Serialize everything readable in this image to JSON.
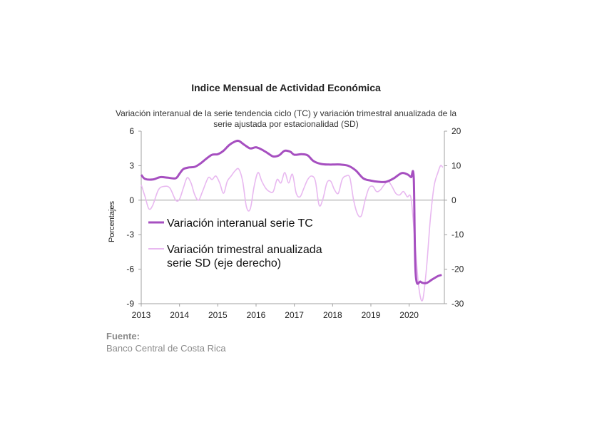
{
  "chart_data": {
    "type": "line",
    "title": "Indice Mensual de  Actividad Económica",
    "subtitle_line1": "Variación interanual de la serie tendencia ciclo (TC) y variación trimestral anualizada de la",
    "subtitle_line2": "serie ajustada por estacionalidad (SD)",
    "ylabel": "Porcentajes",
    "ylim_left": [
      -9,
      6
    ],
    "ylim_right": [
      -30,
      20
    ],
    "yticks_left": [
      "6",
      "3",
      "0",
      "-3",
      "-6",
      "-9"
    ],
    "yticks_right": [
      "20",
      "10",
      "0",
      "-10",
      "-20",
      "-30"
    ],
    "xticks": [
      "2013",
      "2014",
      "2015",
      "2016",
      "2017",
      "2018",
      "2019",
      "2020"
    ],
    "x_range": [
      2013.0,
      2020.92
    ],
    "grid": false,
    "legend_position": "inside-left",
    "series": [
      {
        "name": "Variación interanual serie TC",
        "axis": "left",
        "color": "#a64fc0",
        "points": [
          [
            2013.0,
            2.2
          ],
          [
            2013.1,
            1.85
          ],
          [
            2013.3,
            1.8
          ],
          [
            2013.5,
            2.0
          ],
          [
            2013.7,
            1.95
          ],
          [
            2013.9,
            1.9
          ],
          [
            2014.0,
            2.3
          ],
          [
            2014.1,
            2.7
          ],
          [
            2014.25,
            2.85
          ],
          [
            2014.4,
            2.9
          ],
          [
            2014.55,
            3.2
          ],
          [
            2014.7,
            3.6
          ],
          [
            2014.85,
            3.95
          ],
          [
            2015.0,
            4.0
          ],
          [
            2015.15,
            4.3
          ],
          [
            2015.3,
            4.8
          ],
          [
            2015.45,
            5.1
          ],
          [
            2015.55,
            5.15
          ],
          [
            2015.7,
            4.8
          ],
          [
            2015.85,
            4.5
          ],
          [
            2016.0,
            4.6
          ],
          [
            2016.15,
            4.4
          ],
          [
            2016.3,
            4.1
          ],
          [
            2016.45,
            3.8
          ],
          [
            2016.6,
            3.9
          ],
          [
            2016.75,
            4.3
          ],
          [
            2016.9,
            4.2
          ],
          [
            2017.0,
            3.95
          ],
          [
            2017.2,
            4.0
          ],
          [
            2017.35,
            3.9
          ],
          [
            2017.5,
            3.4
          ],
          [
            2017.7,
            3.15
          ],
          [
            2017.9,
            3.1
          ],
          [
            2018.0,
            3.1
          ],
          [
            2018.2,
            3.1
          ],
          [
            2018.4,
            3.0
          ],
          [
            2018.6,
            2.6
          ],
          [
            2018.8,
            1.9
          ],
          [
            2019.0,
            1.7
          ],
          [
            2019.2,
            1.6
          ],
          [
            2019.4,
            1.6
          ],
          [
            2019.6,
            1.9
          ],
          [
            2019.8,
            2.35
          ],
          [
            2019.95,
            2.25
          ],
          [
            2020.05,
            2.0
          ],
          [
            2020.12,
            1.9
          ],
          [
            2020.17,
            -6.4
          ],
          [
            2020.3,
            -7.1
          ],
          [
            2020.45,
            -7.2
          ],
          [
            2020.6,
            -6.9
          ],
          [
            2020.75,
            -6.6
          ],
          [
            2020.85,
            -6.5
          ]
        ]
      },
      {
        "name": "Variación trimestral anualizada serie SD (eje derecho)",
        "axis": "right",
        "color": "#e8b8f0",
        "points": [
          [
            2013.0,
            4.5
          ],
          [
            2013.1,
            1.0
          ],
          [
            2013.2,
            -2.5
          ],
          [
            2013.3,
            -1.5
          ],
          [
            2013.45,
            3.0
          ],
          [
            2013.6,
            4.0
          ],
          [
            2013.75,
            3.5
          ],
          [
            2013.9,
            0.0
          ],
          [
            2014.0,
            0.3
          ],
          [
            2014.1,
            3.5
          ],
          [
            2014.2,
            6.5
          ],
          [
            2014.3,
            5.0
          ],
          [
            2014.4,
            1.5
          ],
          [
            2014.5,
            0.0
          ],
          [
            2014.6,
            2.5
          ],
          [
            2014.75,
            6.5
          ],
          [
            2014.85,
            6.0
          ],
          [
            2014.95,
            7.0
          ],
          [
            2015.05,
            5.0
          ],
          [
            2015.15,
            2.0
          ],
          [
            2015.25,
            5.5
          ],
          [
            2015.35,
            7.0
          ],
          [
            2015.45,
            8.5
          ],
          [
            2015.55,
            9.0
          ],
          [
            2015.65,
            5.5
          ],
          [
            2015.75,
            -2.0
          ],
          [
            2015.85,
            -2.5
          ],
          [
            2015.95,
            4.0
          ],
          [
            2016.05,
            8.0
          ],
          [
            2016.15,
            5.5
          ],
          [
            2016.25,
            3.5
          ],
          [
            2016.35,
            2.5
          ],
          [
            2016.45,
            2.5
          ],
          [
            2016.55,
            6.0
          ],
          [
            2016.65,
            5.0
          ],
          [
            2016.75,
            8.0
          ],
          [
            2016.85,
            5.0
          ],
          [
            2016.95,
            7.5
          ],
          [
            2017.05,
            2.0
          ],
          [
            2017.15,
            1.0
          ],
          [
            2017.25,
            3.5
          ],
          [
            2017.35,
            6.0
          ],
          [
            2017.45,
            7.0
          ],
          [
            2017.55,
            5.5
          ],
          [
            2017.65,
            -1.5
          ],
          [
            2017.75,
            0.5
          ],
          [
            2017.85,
            5.0
          ],
          [
            2017.95,
            5.5
          ],
          [
            2018.05,
            3.0
          ],
          [
            2018.15,
            2.0
          ],
          [
            2018.25,
            6.0
          ],
          [
            2018.35,
            7.0
          ],
          [
            2018.45,
            6.5
          ],
          [
            2018.55,
            0.0
          ],
          [
            2018.65,
            -4.0
          ],
          [
            2018.75,
            -4.5
          ],
          [
            2018.85,
            0.0
          ],
          [
            2018.95,
            3.5
          ],
          [
            2019.05,
            4.0
          ],
          [
            2019.15,
            2.5
          ],
          [
            2019.25,
            3.0
          ],
          [
            2019.35,
            4.5
          ],
          [
            2019.45,
            5.5
          ],
          [
            2019.55,
            4.0
          ],
          [
            2019.65,
            2.0
          ],
          [
            2019.75,
            1.5
          ],
          [
            2019.85,
            2.5
          ],
          [
            2019.95,
            1.0
          ],
          [
            2020.05,
            0.5
          ],
          [
            2020.15,
            -12.0
          ],
          [
            2020.25,
            -25.0
          ],
          [
            2020.35,
            -29.0
          ],
          [
            2020.45,
            -20.0
          ],
          [
            2020.55,
            -6.0
          ],
          [
            2020.65,
            4.0
          ],
          [
            2020.75,
            8.0
          ],
          [
            2020.82,
            10.0
          ],
          [
            2020.88,
            9.5
          ]
        ]
      }
    ]
  },
  "source": {
    "label": "Fuente:",
    "text": "Banco Central de Costa Rica"
  }
}
